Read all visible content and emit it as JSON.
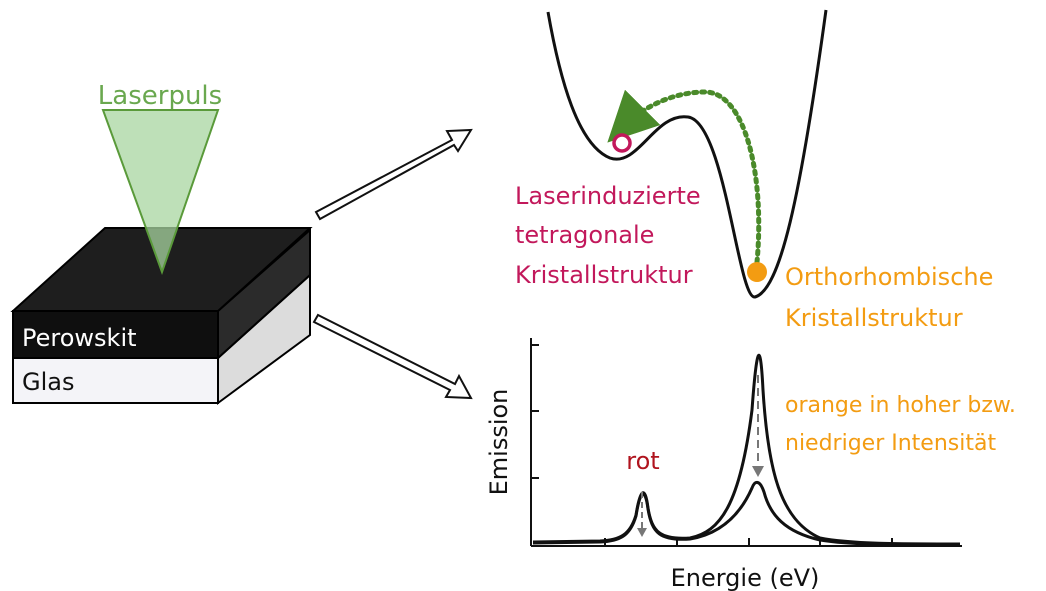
{
  "colors": {
    "laser_green": "#6aa84f",
    "laser_fill": "#a8d5a0",
    "crimson": "#c2185b",
    "orange": "#f39c12",
    "dark": "#1a1a1a"
  },
  "labels": {
    "laser": "Laserpuls",
    "perovskite": "Perowskit",
    "glass": "Glas",
    "tetragonal_line1": "Laserinduzierte",
    "tetragonal_line2": "tetragonale",
    "tetragonal_line3": "Kristallstruktur",
    "ortho_line1": "Orthorhombische",
    "ortho_line2": "Kristallstruktur",
    "red_peak": "rot",
    "orange_line1": "orange in hoher bzw.",
    "orange_line2": "niedriger Intensität",
    "y_axis": "Emission",
    "x_axis": "Energie (eV)"
  }
}
